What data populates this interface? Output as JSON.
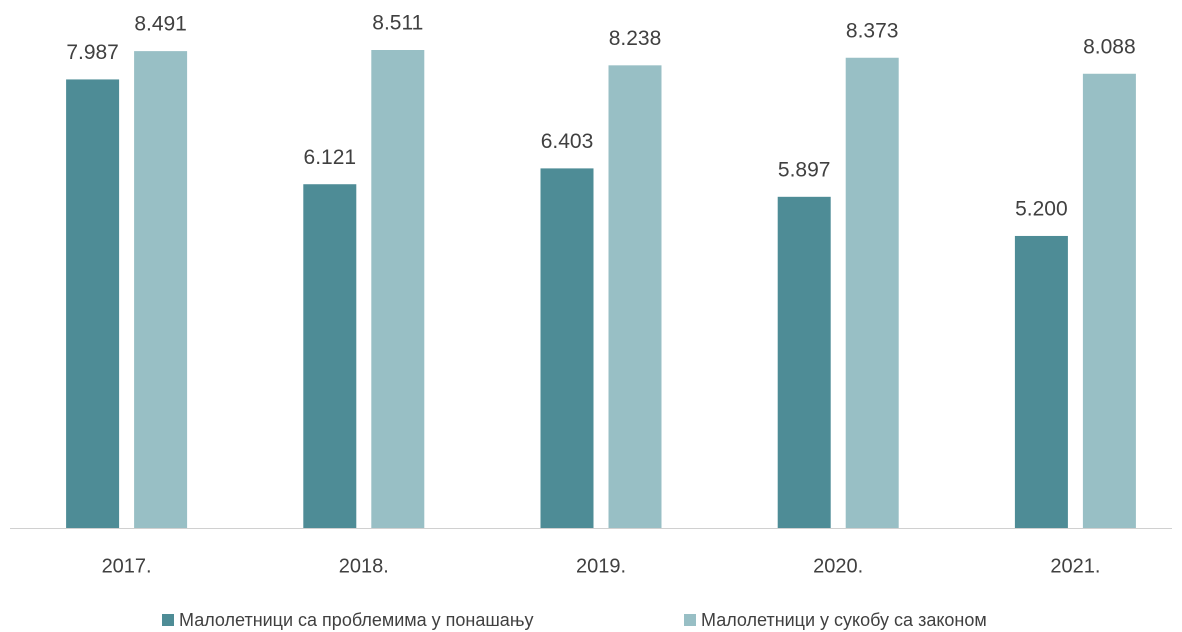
{
  "chart_data": {
    "type": "bar",
    "categories": [
      "2017.",
      "2018.",
      "2019.",
      "2020.",
      "2021."
    ],
    "series": [
      {
        "name": "Малолетници са проблемима у понашању",
        "color": "#4e8c96",
        "values": [
          7987,
          6121,
          6403,
          5897,
          5200
        ],
        "value_labels": [
          "7.987",
          "6.121",
          "6.403",
          "5.897",
          "5.200"
        ]
      },
      {
        "name": "Малолетници у сукобу са законом",
        "color": "#98bfc5",
        "values": [
          8491,
          8511,
          8238,
          8373,
          8088
        ],
        "value_labels": [
          "8.491",
          "8.511",
          "8.238",
          "8.373",
          "8.088"
        ]
      }
    ]
  }
}
